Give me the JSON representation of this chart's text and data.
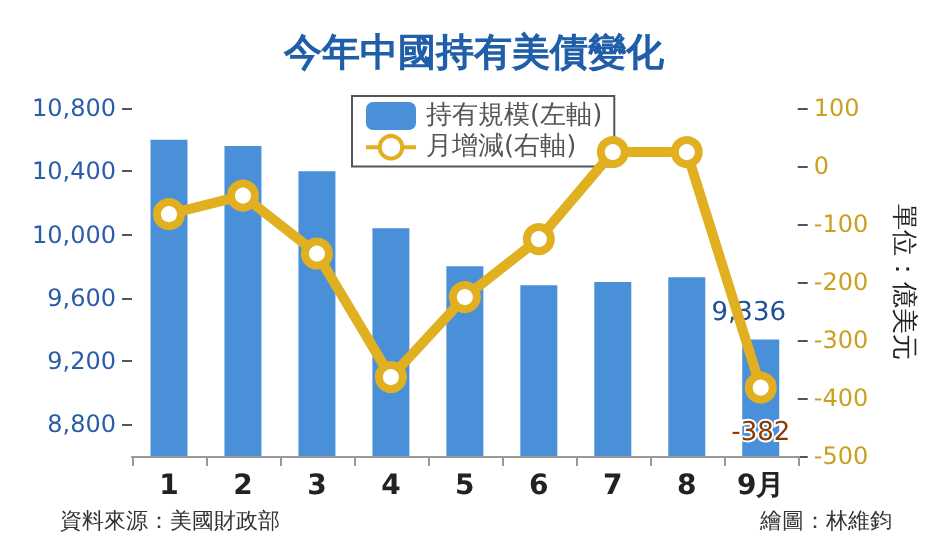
{
  "chart_data": {
    "type": "bar",
    "title": "今年中國持有美債變化",
    "y2label": "單位：億美元",
    "categories": [
      "1",
      "2",
      "3",
      "4",
      "5",
      "6",
      "7",
      "8",
      "9月"
    ],
    "series": [
      {
        "name": "持有規模(左軸)",
        "color": "#4a90d9",
        "values": [
          10600,
          10560,
          10400,
          10040,
          9800,
          9680,
          9700,
          9730,
          9336
        ],
        "value_labels": [
          null,
          null,
          null,
          null,
          null,
          null,
          null,
          null,
          "9,336"
        ]
      },
      {
        "name": "月增減(右軸)",
        "type": "line",
        "axis": "y2",
        "color": "#e0b020",
        "marker": "circle",
        "values": [
          -83,
          -51,
          -151,
          -364,
          -226,
          -126,
          24,
          24,
          -382
        ],
        "value_labels": [
          null,
          null,
          null,
          null,
          null,
          null,
          null,
          null,
          "-382"
        ]
      }
    ],
    "ylim": [
      8600,
      10800
    ],
    "yticks": [
      {
        "value": 8800,
        "label": "8,800"
      },
      {
        "value": 9200,
        "label": "9,200"
      },
      {
        "value": 9600,
        "label": "9,600"
      },
      {
        "value": 10000,
        "label": "10,000"
      },
      {
        "value": 10400,
        "label": "10,400"
      },
      {
        "value": 10800,
        "label": "10,800"
      }
    ],
    "y2lim": [
      -500,
      100
    ],
    "y2ticks": [
      -500,
      -400,
      -300,
      -200,
      -100,
      0,
      100
    ],
    "legend": "top left",
    "grid": false,
    "annotations": [
      "資料來源：美國財政部",
      "繪圖：林維鈞"
    ]
  }
}
